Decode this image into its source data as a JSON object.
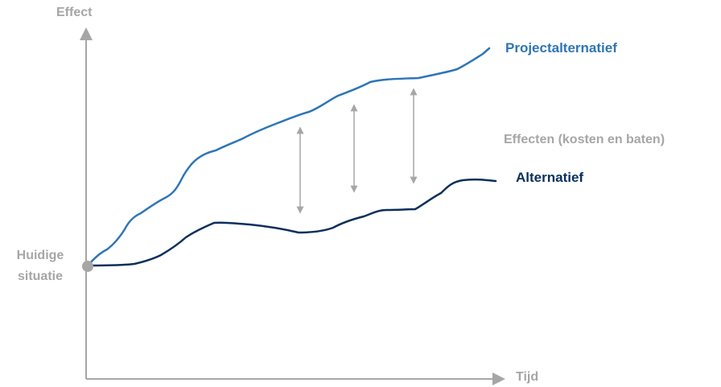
{
  "axes": {
    "y_label": "Effect",
    "x_label": "Tijd"
  },
  "start_point": {
    "line1": "Huidige",
    "line2": "situatie"
  },
  "curves": {
    "project": {
      "label": "Projectalternatief",
      "color": "#2e75b6"
    },
    "alternative": {
      "label": "Alternatief",
      "color": "#0b2f5b"
    }
  },
  "effects_label": "Effecten (kosten en baten)",
  "colors": {
    "axis": "#a6a6a6",
    "arrows": "#a6a6a6",
    "start_marker": "#a6a6a6"
  }
}
